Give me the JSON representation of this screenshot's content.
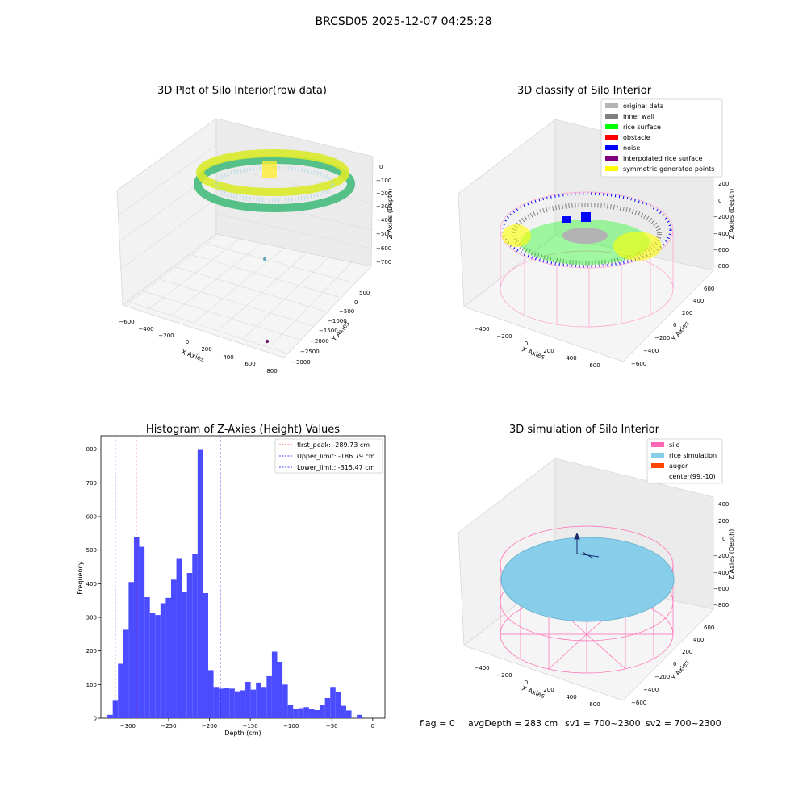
{
  "figure": {
    "suptitle": "BRCSD05 2025-12-07 04:25:28",
    "footer": {
      "flag": "flag = 0",
      "avg": "avgDepth = 283 cm",
      "sv1": "sv1 = 700~2300",
      "sv2": "sv2 = 700~2300"
    }
  },
  "plot3d_raw": {
    "title": "3D Plot of Silo Interior(row data)",
    "xlabel": "X Axies",
    "ylabel": "Y Axies",
    "zlabel": "Z Axies (Depth)",
    "xticks": [
      "−600",
      "−400",
      "−200",
      "0",
      "200",
      "400",
      "600",
      "800"
    ],
    "yticks": [
      "500",
      "0",
      "−500",
      "−1000",
      "−1500",
      "−2000",
      "−2500",
      "−3000"
    ],
    "zticks": [
      "0",
      "−100",
      "−200",
      "−300",
      "−400",
      "−500",
      "−600",
      "−700"
    ],
    "colors": {
      "low": "#3cb878",
      "high": "#d9ea2a",
      "outlier1": "#5ba7b8",
      "outlier2": "#6a1b6e"
    }
  },
  "plot3d_classify": {
    "title": "3D classify of Silo Interior",
    "xlabel": "X Axies",
    "ylabel": "Y Axies",
    "zlabel": "Z Axies (Depth)",
    "xticks": [
      "−400",
      "−200",
      "0",
      "200",
      "400",
      "600"
    ],
    "yticks": [
      "600",
      "400",
      "200",
      "0",
      "−200",
      "−400",
      "−600"
    ],
    "zticks": [
      "200",
      "0",
      "−200",
      "−400",
      "−600",
      "−800"
    ],
    "legend": [
      {
        "label": "original data",
        "color": "#b3b3b3"
      },
      {
        "label": "inner wall",
        "color": "#808080"
      },
      {
        "label": "rice surface",
        "color": "#00ff00"
      },
      {
        "label": "obstacle",
        "color": "#ff0000"
      },
      {
        "label": "noise",
        "color": "#0000ff"
      },
      {
        "label": "interpolated rice surface",
        "color": "#800080"
      },
      {
        "label": "symmetric generated points",
        "color": "#ffff00"
      }
    ]
  },
  "plot3d_sim": {
    "title": "3D simulation of Silo Interior",
    "xlabel": "X Axies",
    "ylabel": "Y Axies",
    "zlabel": "Z Axies (Depth)",
    "xticks": [
      "−400",
      "−200",
      "0",
      "200",
      "400",
      "600"
    ],
    "yticks": [
      "600",
      "400",
      "200",
      "0",
      "−200",
      "−400",
      "−600"
    ],
    "zticks": [
      "400",
      "200",
      "0",
      "−200",
      "−400",
      "−600",
      "−800"
    ],
    "legend": [
      {
        "label": "silo",
        "color": "#ff69b4"
      },
      {
        "label": "rice simulation",
        "color": "#87ceeb"
      },
      {
        "label": "auger",
        "color": "#ff4500"
      },
      {
        "label": "center(99,-10)",
        "color": ""
      }
    ]
  },
  "chart_data": {
    "type": "bar",
    "title": "Histogram of Z-Axies (Height) Values",
    "xlabel": "Depth (cm)",
    "ylabel": "Frequency",
    "xlim": [
      -333,
      15
    ],
    "ylim": [
      0,
      840
    ],
    "bin_width": 6.5,
    "bin_start": -325,
    "values": [
      10,
      52,
      162,
      263,
      405,
      538,
      510,
      360,
      313,
      307,
      342,
      358,
      412,
      474,
      376,
      432,
      488,
      798,
      372,
      143,
      93,
      88,
      91,
      88,
      80,
      83,
      108,
      85,
      106,
      93,
      125,
      198,
      168,
      100,
      40,
      28,
      30,
      33,
      27,
      24,
      40,
      60,
      93,
      78,
      37,
      23,
      0,
      10
    ],
    "xticks": [
      -300,
      -250,
      -200,
      -150,
      -100,
      -50,
      0
    ],
    "xtick_labels": [
      "−300",
      "−250",
      "−200",
      "−150",
      "−100",
      "−50",
      "0"
    ],
    "yticks": [
      0,
      100,
      200,
      300,
      400,
      500,
      600,
      700,
      800
    ],
    "bar_color": "#4b4bff",
    "vlines": [
      {
        "name": "first_peak: -289.73 cm",
        "x": -289.73,
        "color": "#ff0000"
      },
      {
        "name": "Upper_limit: -186.79 cm",
        "x": -186.79,
        "color": "#0000ff"
      },
      {
        "name": "Lower_limit: -315.47 cm",
        "x": -315.47,
        "color": "#0000ff"
      }
    ],
    "legend_position": "top-right"
  }
}
